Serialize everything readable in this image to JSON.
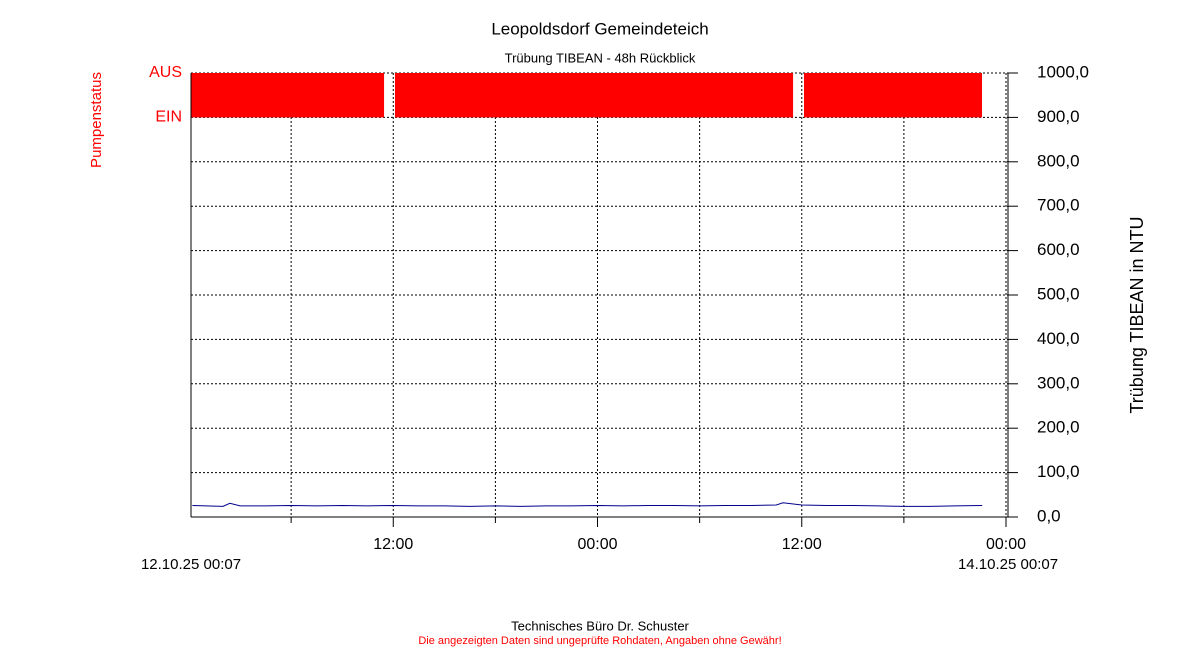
{
  "chart_data": {
    "type": "line",
    "title": "Leopoldsdorf Gemeindeteich",
    "subtitle": "Trübung  TIBEAN - 48h Rückblick",
    "y_label": "Trübung  TIBEAN in NTU",
    "status_label": "Pumpenstatus",
    "status_ticks": [
      {
        "value": 1000,
        "label": "AUS"
      },
      {
        "value": 900,
        "label": "EIN"
      }
    ],
    "x_start_label": "12.10.25 00:07",
    "x_end_label": "14.10.25 00:07",
    "xlim": [
      0.117,
      48.117
    ],
    "xticks": [
      {
        "value": 12,
        "label": "12:00"
      },
      {
        "value": 24,
        "label": "00:00"
      },
      {
        "value": 36,
        "label": "12:00"
      },
      {
        "value": 48,
        "label": "00:00"
      }
    ],
    "xminor": [
      6,
      18,
      30,
      42
    ],
    "ylim": [
      0,
      1000
    ],
    "yticks": [
      {
        "value": 0,
        "label": "0,0"
      },
      {
        "value": 100,
        "label": "100,0"
      },
      {
        "value": 200,
        "label": "200,0"
      },
      {
        "value": 300,
        "label": "300,0"
      },
      {
        "value": 400,
        "label": "400,0"
      },
      {
        "value": 500,
        "label": "500,0"
      },
      {
        "value": 600,
        "label": "600,0"
      },
      {
        "value": 700,
        "label": "700,0"
      },
      {
        "value": 800,
        "label": "800,0"
      },
      {
        "value": 900,
        "label": "900,0"
      },
      {
        "value": 1000,
        "label": "1000,0"
      }
    ],
    "grid": true,
    "color": "#00008b",
    "x": [
      0.2,
      1,
      2,
      2.4,
      3,
      4.5,
      6,
      7.5,
      9,
      10.5,
      12,
      13.5,
      15,
      16.5,
      18,
      19.5,
      21,
      22.5,
      24,
      25.5,
      27,
      28.5,
      30,
      31.5,
      33,
      34.5,
      34.9,
      36,
      37.5,
      39,
      40.5,
      42,
      43.5,
      45,
      46.6
    ],
    "values": [
      26,
      25,
      24,
      31,
      25,
      25,
      26,
      25,
      26,
      25,
      26,
      25,
      25,
      24,
      25,
      24,
      25,
      25,
      26,
      25,
      26,
      26,
      25,
      26,
      26,
      27,
      32,
      27,
      26,
      26,
      25,
      24,
      24,
      25,
      26
    ],
    "pump": {
      "color": "#ff0000",
      "high": 1000,
      "low": 900,
      "starts": [
        0.117,
        12.1,
        36.13
      ],
      "ends": [
        11.46,
        35.49,
        46.59
      ]
    },
    "footer": "Technisches Büro Dr. Schuster",
    "disclaimer": "Die angezeigten Daten sind ungeprüfte Rohdaten, Angaben ohne Gewähr!"
  }
}
